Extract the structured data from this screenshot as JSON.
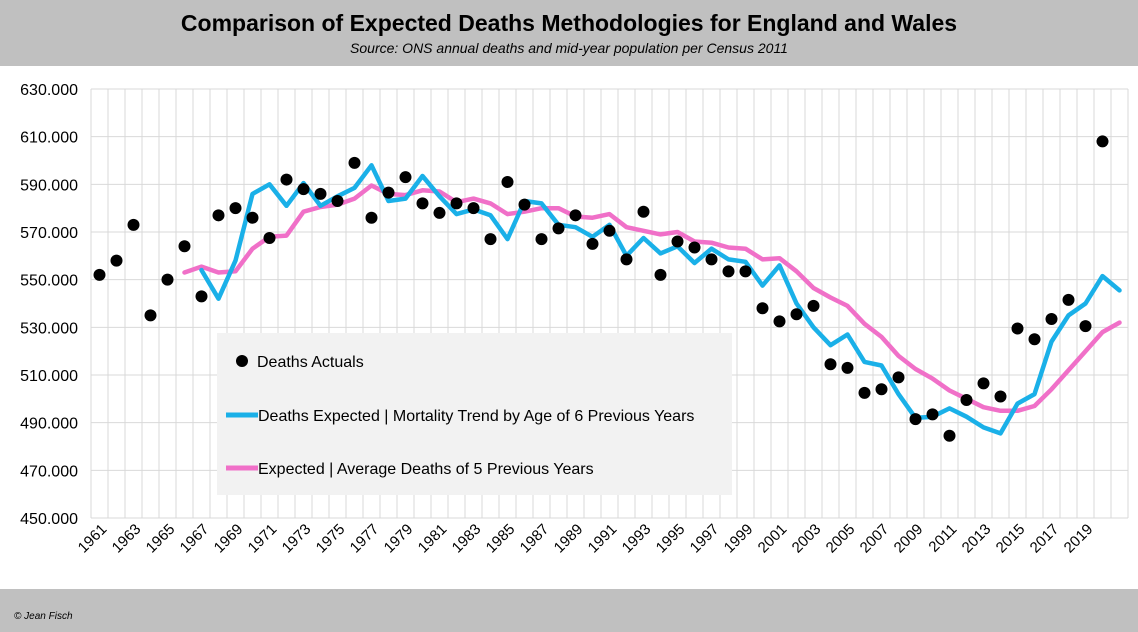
{
  "header": {
    "title": "Comparison of Expected Deaths Methodologies for England and Wales",
    "subtitle": "Source: ONS annual deaths and mid-year population per Census 2011"
  },
  "footer": {
    "credit": "© Jean Fisch"
  },
  "colors": {
    "header_bg": "#c0c0c0",
    "actuals": "#000000",
    "trend": "#1ab0e8",
    "average": "#f070c8",
    "legend_bg": "#f2f2f2",
    "grid": "#d9d9d9"
  },
  "chart_data": {
    "type": "line",
    "ylim": [
      450000,
      630000
    ],
    "yticks": [
      450000,
      470000,
      490000,
      510000,
      530000,
      550000,
      570000,
      590000,
      610000,
      630000
    ],
    "ytick_labels": [
      "450.000",
      "470.000",
      "490.000",
      "510.000",
      "530.000",
      "550.000",
      "570.000",
      "590.000",
      "610.000",
      "630.000"
    ],
    "xticks": [
      "1961",
      "1963",
      "1965",
      "1967",
      "1969",
      "1971",
      "1973",
      "1975",
      "1977",
      "1979",
      "1981",
      "1983",
      "1985",
      "1987",
      "1989",
      "1991",
      "1993",
      "1995",
      "1997",
      "1999",
      "2001",
      "2003",
      "2005",
      "2007",
      "2009",
      "2011",
      "2013",
      "2015",
      "2017",
      "2019"
    ],
    "grid": "vertical-and-horizontal",
    "legend_position": "lower-left-inside",
    "series": [
      {
        "name": "Deaths Actuals",
        "kind": "scatter",
        "x_start": 1961,
        "values": [
          552000,
          558000,
          573000,
          535000,
          550000,
          564000,
          543000,
          577000,
          580000,
          576000,
          567500,
          592000,
          588000,
          586000,
          583000,
          599000,
          576000,
          586500,
          593000,
          582000,
          578000,
          582000,
          580000,
          567000,
          591000,
          581500,
          567000,
          571500,
          577000,
          565000,
          570500,
          558500,
          578500,
          552000,
          566000,
          563500,
          558500,
          553500,
          553500,
          538000,
          532500,
          535500,
          539000,
          514500,
          513000,
          502500,
          504000,
          509000,
          491500,
          493500,
          484500,
          499500,
          506500,
          501000,
          529500,
          525000,
          533500,
          541500,
          530500,
          608000
        ]
      },
      {
        "name": "Deaths Expected | Mortality Trend by Age of 6 Previous Years",
        "kind": "line",
        "x_start": 1967,
        "values": [
          554000,
          542000,
          558000,
          586000,
          590000,
          581000,
          590500,
          581000,
          585000,
          588500,
          598000,
          583000,
          584000,
          593500,
          585000,
          577500,
          579500,
          577000,
          567000,
          583000,
          582000,
          573000,
          572000,
          568000,
          573000,
          560000,
          567500,
          561000,
          564000,
          557000,
          563000,
          558500,
          557500,
          547500,
          556000,
          540000,
          530000,
          522500,
          527000,
          515500,
          514000,
          502000,
          492000,
          492500,
          496000,
          492500,
          488000,
          485500,
          498000,
          502000,
          524000,
          535000,
          540000,
          551500,
          545500
        ]
      },
      {
        "name": "Expected | Average Deaths of 5 Previous Years",
        "kind": "line",
        "x_start": 1966,
        "values": [
          553000,
          555500,
          553000,
          553500,
          563000,
          568000,
          568500,
          578500,
          580500,
          581500,
          584000,
          589500,
          586000,
          585500,
          587500,
          587000,
          582500,
          584000,
          582000,
          577500,
          578500,
          580000,
          580000,
          576500,
          576000,
          577500,
          572000,
          570500,
          569000,
          570000,
          566000,
          565500,
          563500,
          563000,
          558500,
          559000,
          553500,
          546500,
          542500,
          539000,
          531500,
          526000,
          518000,
          512500,
          508500,
          503500,
          500000,
          496500,
          495000,
          495000,
          497000,
          504000,
          512000,
          520000,
          528000,
          532000
        ]
      }
    ]
  }
}
